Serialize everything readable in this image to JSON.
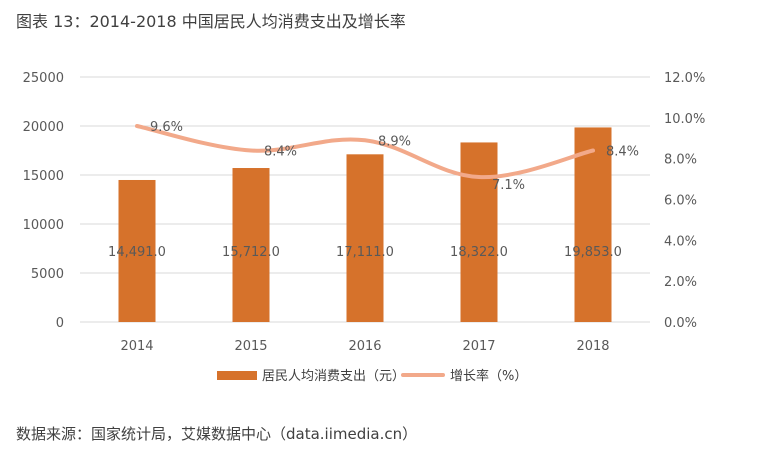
{
  "title": "图表 13：2014-2018 中国居民人均消费支出及增长率",
  "source": "数据来源：国家统计局，艾媒数据中心（data.iimedia.cn）",
  "colors": {
    "bar": "#D6722B",
    "line": "#F2A98A",
    "grid": "#D9D9D9",
    "text": "#595959"
  },
  "chart_data": {
    "type": "bar",
    "categories": [
      "2014",
      "2015",
      "2016",
      "2017",
      "2018"
    ],
    "series": [
      {
        "name": "居民人均消费支出（元）",
        "type": "bar",
        "axis": "left",
        "values": [
          14491.0,
          15712.0,
          17111.0,
          18322.0,
          19853.0
        ],
        "labels": [
          "14,491.0",
          "15,712.0",
          "17,111.0",
          "18,322.0",
          "19,853.0"
        ]
      },
      {
        "name": "增长率（%）",
        "type": "line",
        "axis": "right",
        "values": [
          9.6,
          8.4,
          8.9,
          7.1,
          8.4
        ],
        "labels": [
          "9.6%",
          "8.4%",
          "8.9%",
          "7.1%",
          "8.4%"
        ]
      }
    ],
    "y_left": {
      "ylim": [
        0,
        25000
      ],
      "ticks": [
        "0",
        "5000",
        "10000",
        "15000",
        "20000",
        "25000"
      ]
    },
    "y_right": {
      "ylim": [
        0,
        12
      ],
      "ticks": [
        "0.0%",
        "2.0%",
        "4.0%",
        "6.0%",
        "8.0%",
        "10.0%",
        "12.0%"
      ]
    },
    "grid": true,
    "legend_position": "bottom"
  }
}
